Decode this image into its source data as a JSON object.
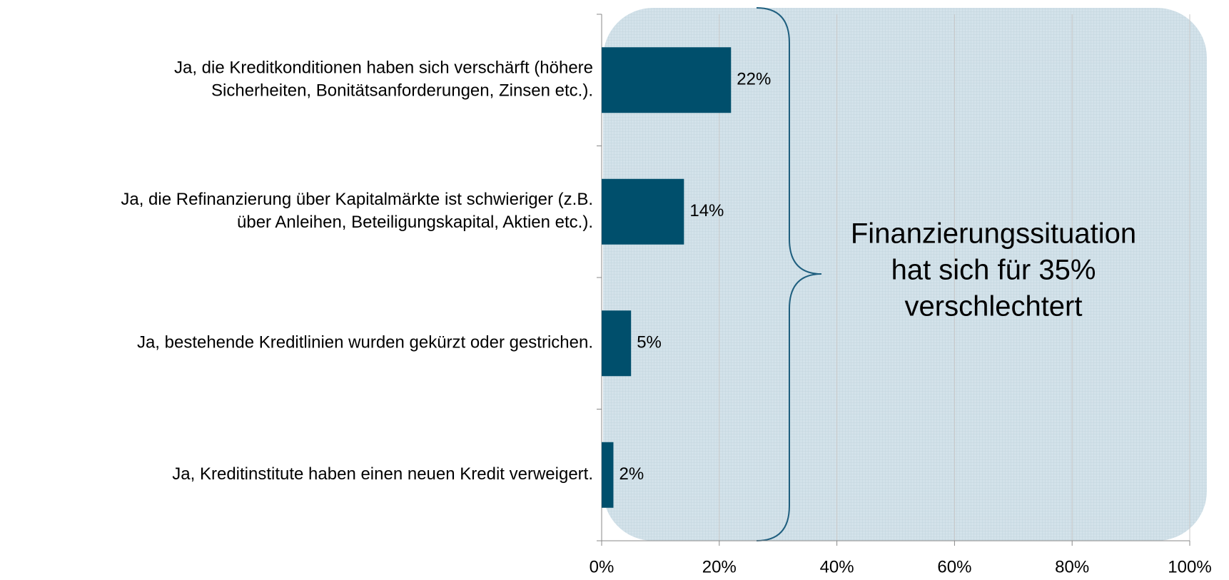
{
  "chart_data": {
    "type": "bar",
    "orientation": "horizontal",
    "categories": [
      [
        "Ja, die Kreditkonditionen haben sich verschärft (höhere",
        "Sicherheiten, Bonitätsanforderungen, Zinsen etc.)."
      ],
      [
        "Ja, die Refinanzierung über Kapitalmärkte ist schwieriger (z.B.",
        "über Anleihen, Beteiligungskapital, Aktien etc.)."
      ],
      [
        "Ja, bestehende Kreditlinien wurden gekürzt oder gestrichen."
      ],
      [
        "Ja, Kreditinstitute haben einen neuen Kredit verweigert."
      ]
    ],
    "values": [
      22,
      14,
      5,
      2
    ],
    "value_labels": [
      "22%",
      "14%",
      "5%",
      "2%"
    ],
    "color": "#004f6c",
    "xlim": [
      0,
      100
    ],
    "xticks": [
      {
        "value": 0,
        "label": "0%"
      },
      {
        "value": 20,
        "label": "20%"
      },
      {
        "value": 40,
        "label": "40%"
      },
      {
        "value": 60,
        "label": "60%"
      },
      {
        "value": 80,
        "label": "80%"
      },
      {
        "value": 100,
        "label": "100%"
      }
    ],
    "grid": true,
    "annotation": [
      "Finanzierungssituation",
      "hat sich für 35%",
      "verschlechtert"
    ]
  }
}
